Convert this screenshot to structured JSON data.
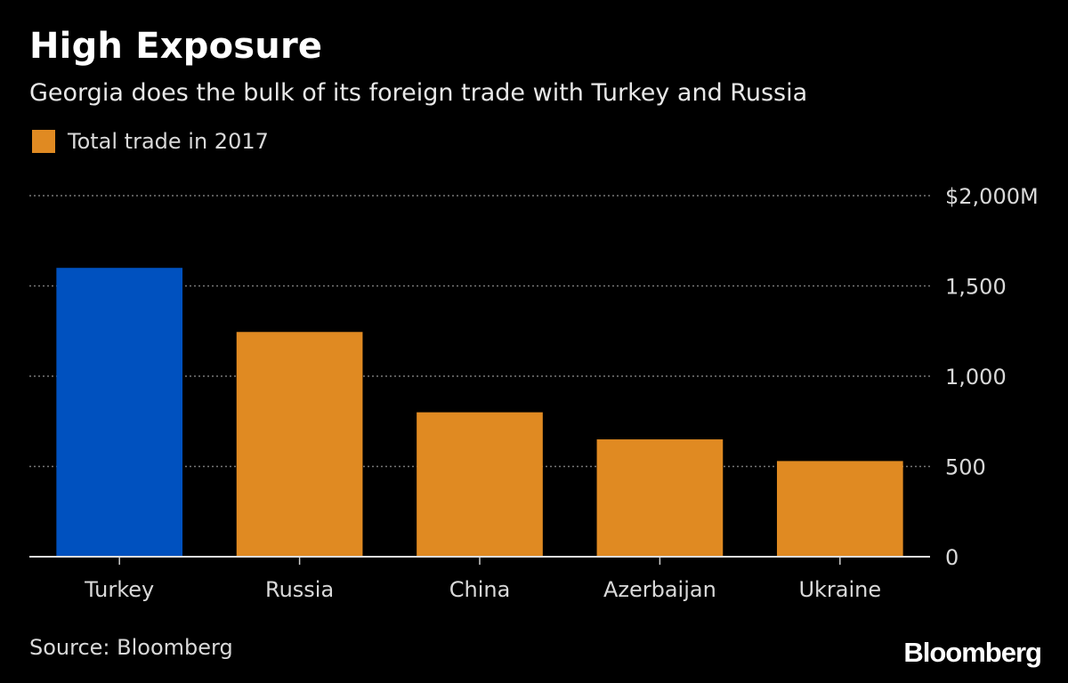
{
  "header": {
    "title": "High Exposure",
    "subtitle": "Georgia does the bulk of its foreign trade with Turkey and Russia"
  },
  "legend": {
    "label": "Total trade in 2017",
    "color": "#e08a22"
  },
  "footer": {
    "source": "Source: Bloomberg",
    "logo": "Bloomberg"
  },
  "colors": {
    "background": "#000000",
    "default_bar": "#e08a22",
    "highlight_bar": "#0051bf",
    "gridline": "#777777",
    "text": "#ffffff",
    "muted_text": "#d9d9d9"
  },
  "chart_data": {
    "type": "bar",
    "categories": [
      "Turkey",
      "Russia",
      "China",
      "Azerbaijan",
      "Ukraine"
    ],
    "values": [
      1600,
      1245,
      800,
      650,
      530
    ],
    "highlight": [
      "Turkey"
    ],
    "ylim": [
      0,
      2000
    ],
    "yticks": [
      0,
      500,
      1000,
      1500,
      2000
    ],
    "ytick_labels": [
      "0",
      "500",
      "1,000",
      "1,500",
      "$2,000M"
    ],
    "grid": true,
    "legend_position": "top-left"
  }
}
